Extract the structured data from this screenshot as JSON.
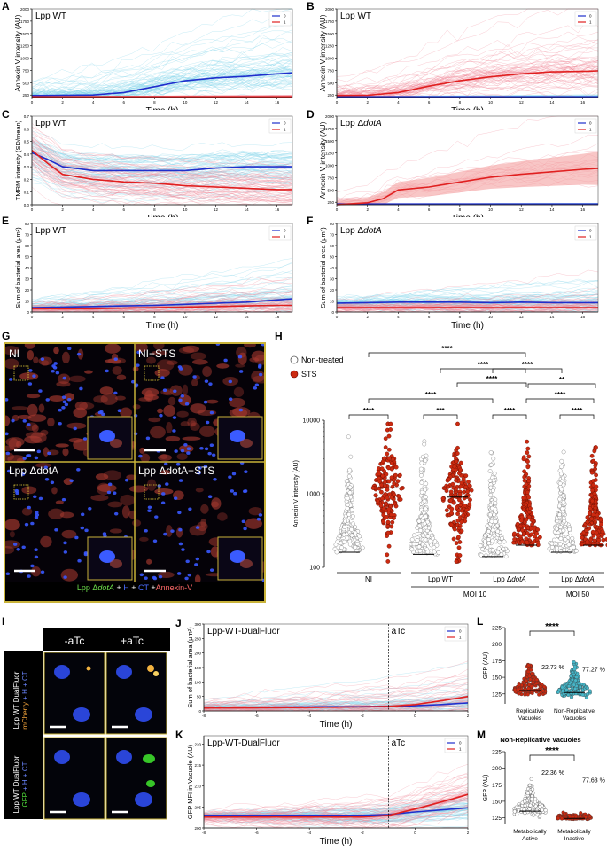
{
  "panel_labels": {
    "A": "A",
    "B": "B",
    "C": "C",
    "D": "D",
    "E": "E",
    "F": "F",
    "G": "G",
    "H": "H",
    "I": "I",
    "J": "J",
    "K": "K",
    "L": "L",
    "M": "M"
  },
  "colors": {
    "series0": "#1f2fcc",
    "series1": "#e02020",
    "trace0": "#7fd3e8",
    "trace1": "#f08a9a",
    "img_border": "#c9b33a",
    "nontreated": "#ffffff",
    "sts": "#cc2a10",
    "nonrep": "#46b6c8"
  },
  "timecourse_legend": [
    "0",
    "1"
  ],
  "chart_data": [
    {
      "id": "A",
      "type": "line",
      "title": "Lpp WT",
      "xlabel": "Time (h)",
      "ylabel": "Annexin V  intensity (AU)",
      "x": [
        0,
        2,
        4,
        6,
        8,
        10,
        12,
        14,
        16,
        17
      ],
      "xticks": [
        "0",
        "2",
        "4",
        "6",
        "8",
        "10",
        "12",
        "14",
        "16"
      ],
      "yticks": [
        "250",
        "500",
        "750",
        "1000",
        "1250",
        "1500",
        "1750",
        "2000"
      ],
      "ylim": [
        200,
        2000
      ],
      "series": [
        {
          "name": "0",
          "values": [
            240,
            245,
            250,
            300,
            420,
            540,
            600,
            630,
            680,
            700
          ]
        },
        {
          "name": "1",
          "values": [
            215,
            215,
            215,
            215,
            215,
            215,
            215,
            215,
            215,
            215
          ]
        }
      ]
    },
    {
      "id": "B",
      "type": "line",
      "title": "Lpp WT",
      "xlabel": "Time (h)",
      "ylabel": "Annexin V  intensity (AU)",
      "x": [
        0,
        2,
        4,
        6,
        8,
        10,
        12,
        14,
        16,
        17
      ],
      "xticks": [
        "0",
        "2",
        "4",
        "6",
        "8",
        "10",
        "12",
        "14",
        "16"
      ],
      "yticks": [
        "250",
        "500",
        "750",
        "1000",
        "1250",
        "1500",
        "1750",
        "2000"
      ],
      "ylim": [
        200,
        2000
      ],
      "series": [
        {
          "name": "0",
          "values": [
            215,
            215,
            215,
            215,
            215,
            215,
            215,
            215,
            215,
            215
          ]
        },
        {
          "name": "1",
          "values": [
            240,
            245,
            300,
            430,
            540,
            620,
            680,
            720,
            730,
            740
          ]
        }
      ]
    },
    {
      "id": "C",
      "type": "line",
      "title": "Lpp WT",
      "xlabel": "Time (h)",
      "ylabel": "TMRM intensity (SD/mean)",
      "x": [
        0,
        1,
        2,
        4,
        6,
        8,
        10,
        12,
        14,
        16,
        17
      ],
      "xticks": [
        "0",
        "2",
        "4",
        "6",
        "8",
        "10",
        "12",
        "14",
        "16"
      ],
      "yticks": [
        "0.0",
        "0.1",
        "0.2",
        "0.3",
        "0.4",
        "0.5",
        "0.6",
        "0.7"
      ],
      "ylim": [
        0,
        0.7
      ],
      "series": [
        {
          "name": "0",
          "values": [
            0.41,
            0.36,
            0.3,
            0.27,
            0.27,
            0.27,
            0.27,
            0.29,
            0.3,
            0.3,
            0.3
          ]
        },
        {
          "name": "1",
          "values": [
            0.43,
            0.33,
            0.24,
            0.2,
            0.18,
            0.17,
            0.15,
            0.14,
            0.13,
            0.12,
            0.12
          ]
        }
      ]
    },
    {
      "id": "D",
      "type": "line",
      "title_prefix": "Lpp Δ",
      "title_italic": "dotA",
      "xlabel": "Time (h)",
      "ylabel": "Annexin V  intensity (AU)",
      "x": [
        0,
        2,
        3,
        4,
        6,
        8,
        10,
        12,
        14,
        16,
        17
      ],
      "xticks": [
        "0",
        "2",
        "4",
        "6",
        "8",
        "10",
        "12",
        "14",
        "16"
      ],
      "yticks": [
        "250",
        "500",
        "750",
        "1000",
        "1250",
        "1500",
        "1750",
        "2000"
      ],
      "ylim": [
        200,
        2000
      ],
      "series": [
        {
          "name": "0",
          "values": [
            215,
            215,
            215,
            215,
            215,
            215,
            215,
            215,
            215,
            215,
            215
          ]
        },
        {
          "name": "1",
          "values": [
            200,
            240,
            320,
            500,
            560,
            660,
            760,
            820,
            870,
            920,
            940
          ]
        }
      ]
    },
    {
      "id": "E",
      "type": "line",
      "title": "Lpp WT",
      "xlabel": "Time (h)",
      "ylabel": "Sum of bacterial area (μm²)",
      "x": [
        0,
        2,
        4,
        6,
        8,
        10,
        12,
        14,
        16,
        17
      ],
      "xticks": [
        "0",
        "2",
        "4",
        "6",
        "8",
        "10",
        "12",
        "14",
        "16"
      ],
      "yticks": [
        "0",
        "10",
        "20",
        "30",
        "40",
        "50",
        "60",
        "70",
        "80"
      ],
      "ylim": [
        0,
        80
      ],
      "series": [
        {
          "name": "0",
          "values": [
            4,
            4.5,
            5,
            5.5,
            6,
            7,
            8,
            9,
            11,
            12
          ]
        },
        {
          "name": "1",
          "values": [
            3,
            3,
            3,
            3.5,
            4,
            4.5,
            5,
            5.5,
            6,
            6
          ]
        }
      ]
    },
    {
      "id": "F",
      "type": "line",
      "title_prefix": "Lpp Δ",
      "title_italic": "dotA",
      "xlabel": "Time (h)",
      "ylabel": "Sum of bacterial area (μm²)",
      "x": [
        0,
        2,
        4,
        6,
        8,
        10,
        12,
        14,
        16,
        17
      ],
      "xticks": [
        "0",
        "2",
        "4",
        "6",
        "8",
        "10",
        "12",
        "14",
        "16"
      ],
      "yticks": [
        "0",
        "10",
        "20",
        "30",
        "40",
        "50",
        "60",
        "70",
        "80"
      ],
      "ylim": [
        0,
        80
      ],
      "series": [
        {
          "name": "0",
          "values": [
            8,
            8.5,
            9,
            9,
            9,
            8.5,
            9,
            8.5,
            8.5,
            8.5
          ]
        },
        {
          "name": "1",
          "values": [
            4,
            4,
            4,
            4,
            4,
            4,
            4,
            4,
            4,
            4
          ]
        }
      ]
    },
    {
      "id": "H",
      "type": "scatter",
      "ylabel": "Annexin V intensity (AU)",
      "yscale": "log",
      "ylim": [
        100,
        10000
      ],
      "yticks": [
        "100",
        "1000",
        "10000"
      ],
      "legend": [
        "Non-treated",
        "STS"
      ],
      "groups": [
        {
          "name": "NI",
          "series": "Non-treated"
        },
        {
          "name": "NI",
          "series": "STS"
        },
        {
          "name": "Lpp WT",
          "series": "Non-treated"
        },
        {
          "name": "Lpp WT",
          "series": "STS"
        },
        {
          "name": "Lpp ΔdotA",
          "series": "Non-treated"
        },
        {
          "name": "Lpp ΔdotA",
          "series": "STS"
        },
        {
          "name": "Lpp ΔdotA",
          "series": "Non-treated"
        },
        {
          "name": "Lpp ΔdotA",
          "series": "STS"
        }
      ],
      "medians": [
        160,
        1200,
        150,
        900,
        140,
        200,
        160,
        200
      ],
      "xgroup_labels": {
        "ni": "NI",
        "wt": "Lpp WT",
        "dotA_prefix": "Lpp Δ",
        "dotA_italic": "dotA",
        "moi10": "MOI 10",
        "moi50": "MOI 50"
      },
      "significance": [
        "****",
        "****",
        "****",
        "****",
        "****",
        "****",
        "****",
        "***",
        "****",
        "**",
        "****"
      ]
    },
    {
      "id": "J",
      "type": "line",
      "title": "Lpp-WT-DualFluor",
      "annotation": "aTc",
      "xlabel": "Time (h)",
      "ylabel": "Sum of bacterial area (μm²)",
      "x": [
        -8,
        -6,
        -4,
        -2,
        -1,
        0,
        1,
        2
      ],
      "xticks": [
        "-8",
        "-6",
        "-4",
        "-2",
        "0",
        "2"
      ],
      "yticks": [
        "0",
        "50",
        "100",
        "150",
        "200",
        "250",
        "300"
      ],
      "ylim": [
        0,
        300
      ],
      "series": [
        {
          "name": "0",
          "values": [
            12,
            13,
            14,
            15,
            16,
            18,
            22,
            28
          ]
        },
        {
          "name": "1",
          "values": [
            10,
            11,
            12,
            14,
            16,
            22,
            35,
            50
          ]
        }
      ]
    },
    {
      "id": "K",
      "type": "line",
      "title": "Lpp-WT-DualFluor",
      "annotation": "aTc",
      "xlabel": "Time (h)",
      "ylabel": "GFP MFI in Vacuole (AU)",
      "x": [
        -8,
        -6,
        -4,
        -2,
        -1,
        0,
        1,
        2
      ],
      "xticks": [
        "-8",
        "-6",
        "-4",
        "-2",
        "0",
        "2"
      ],
      "yticks": [
        "200",
        "205",
        "210",
        "215",
        "220"
      ],
      "ylim": [
        200,
        222
      ],
      "series": [
        {
          "name": "0",
          "values": [
            203,
            203,
            203,
            203,
            203.2,
            203.8,
            204.3,
            204.8
          ]
        },
        {
          "name": "1",
          "values": [
            202.6,
            202.6,
            202.6,
            202.6,
            203,
            204.5,
            206.2,
            208
          ]
        }
      ]
    },
    {
      "id": "L",
      "type": "scatter",
      "ylabel": "GFP (AU)",
      "ylim": [
        110,
        225
      ],
      "yticks": [
        "125",
        "150",
        "175",
        "200",
        "225"
      ],
      "groups": [
        {
          "name": "Replicative Vacuoles",
          "percent": "22.73 %",
          "median": 130
        },
        {
          "name": "Non-Replicative Vacuoles",
          "percent": "77.27 %",
          "median": 127
        }
      ],
      "significance": "****"
    },
    {
      "id": "M",
      "type": "scatter",
      "title": "Non-Replicative Vacuoles",
      "ylabel": "GFP (AU)",
      "ylim": [
        115,
        225
      ],
      "yticks": [
        "125",
        "150",
        "175",
        "200",
        "225"
      ],
      "groups": [
        {
          "name": "Metabolically Active",
          "percent": "22.36 %",
          "median": 135
        },
        {
          "name": "Metabolically Inactive",
          "percent": "77.63 %",
          "median": 124
        }
      ],
      "significance": "****"
    }
  ],
  "microscopy_G": {
    "tiles": [
      "NI",
      "NI+STS",
      "Lpp ΔdotA",
      "Lpp ΔdotA+STS"
    ],
    "legend": {
      "lpp": "Lpp Δ",
      "dotA": "dotA",
      "plus1": " + ",
      "h": "H",
      "plus2": " + ",
      "ct": "CT",
      "plus3": " +",
      "annexin": "Annexin-V"
    }
  },
  "microscopy_I": {
    "columns": [
      "-aTc",
      "+aTc"
    ],
    "row1": {
      "name": "Lpp WT DualFluor",
      "channel": "mCherry",
      "rest": " + H + CT"
    },
    "row2": {
      "name": "Lpp WT DualFluor",
      "channel": "GFP",
      "rest": " + H + CT"
    }
  }
}
